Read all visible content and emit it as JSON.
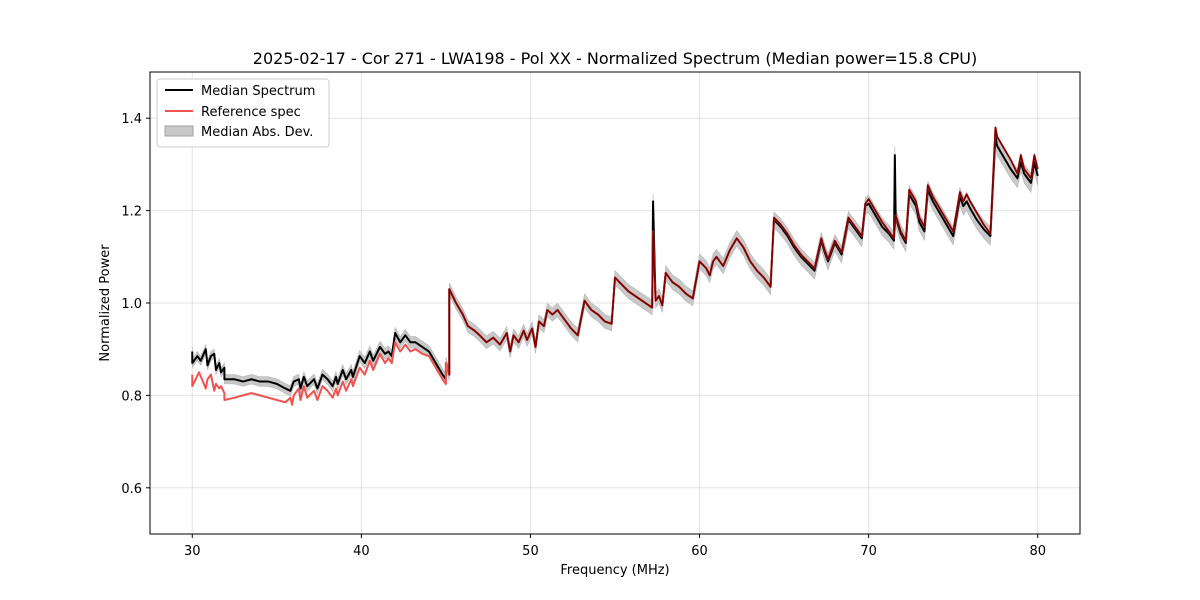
{
  "chart_data": {
    "type": "line",
    "title": "2025-02-17 - Cor 271 - LWA198 - Pol XX - Normalized Spectrum (Median power=15.8 CPU)",
    "xlabel": "Frequency (MHz)",
    "ylabel": "Normalized Power",
    "xlim": [
      27.5,
      82.5
    ],
    "ylim": [
      0.5,
      1.5
    ],
    "xticks": [
      30,
      40,
      50,
      60,
      70,
      80
    ],
    "yticks": [
      0.6,
      0.8,
      1.0,
      1.2,
      1.4
    ],
    "xtick_labels": [
      "30",
      "40",
      "50",
      "60",
      "70",
      "80"
    ],
    "ytick_labels": [
      "0.6",
      "0.8",
      "1.0",
      "1.2",
      "1.4"
    ],
    "grid": true,
    "legend_position": "top-left",
    "legend": [
      {
        "label": "Median Spectrum",
        "kind": "line",
        "color": "#000000"
      },
      {
        "label": "Reference spec",
        "kind": "line",
        "color": "#ef5350"
      },
      {
        "label": "Median Abs. Dev.",
        "kind": "band",
        "color": "#c8c8c8"
      }
    ],
    "mad_width": 0.012,
    "series": [
      {
        "name": "Reference spec",
        "color": "#ef5350",
        "x": [
          30.0,
          30.0,
          30.4,
          30.8,
          30.9,
          31.1,
          31.3,
          31.4,
          31.6,
          31.7,
          31.9,
          31.9,
          32.5,
          33.0,
          33.5,
          34.0,
          34.5,
          35.0,
          35.5,
          35.8,
          35.9,
          36.0,
          36.3,
          36.4,
          36.6,
          36.8,
          37.2,
          37.4,
          37.7,
          38.0,
          38.3,
          38.5,
          38.6,
          38.9,
          39.1,
          39.4,
          39.5,
          39.9,
          40.2,
          40.5,
          40.7,
          41.1,
          41.4,
          41.6,
          41.8,
          42.0,
          42.3,
          42.6,
          42.9,
          43.2,
          43.6,
          44.0,
          44.4,
          44.8,
          45.0,
          45.0,
          45.2,
          45.2,
          45.6,
          46.0,
          46.3,
          46.7,
          47.0,
          47.4,
          47.8,
          48.2,
          48.6,
          48.8,
          49.0,
          49.3,
          49.6,
          49.8,
          50.1,
          50.3,
          50.5,
          50.8,
          51.0,
          51.3,
          51.6,
          52.0,
          52.4,
          52.8,
          53.2,
          53.4,
          53.6,
          54.0,
          54.4,
          54.8,
          55.0,
          55.4,
          55.8,
          56.2,
          56.6,
          57.0,
          57.2,
          57.25,
          57.4,
          57.6,
          57.8,
          58.0,
          58.4,
          58.8,
          59.2,
          59.6,
          60.0,
          60.4,
          60.6,
          60.8,
          61.0,
          61.4,
          61.8,
          62.2,
          62.6,
          63.0,
          63.4,
          63.8,
          64.2,
          64.4,
          64.8,
          65.2,
          65.6,
          66.0,
          66.4,
          66.8,
          67.2,
          67.4,
          67.6,
          68.0,
          68.4,
          68.8,
          69.2,
          69.6,
          69.8,
          70.0,
          70.4,
          70.8,
          71.2,
          71.5,
          71.6,
          71.9,
          72.2,
          72.4,
          72.8,
          73.0,
          73.3,
          73.5,
          73.8,
          74.2,
          74.6,
          75.0,
          75.4,
          75.6,
          75.8,
          76.0,
          76.4,
          76.8,
          77.2,
          77.5,
          77.6,
          78.0,
          78.4,
          78.8,
          79.0,
          79.2,
          79.6,
          79.8,
          80.0
        ],
        "values": [
          0.845,
          0.82,
          0.85,
          0.815,
          0.835,
          0.845,
          0.81,
          0.825,
          0.815,
          0.82,
          0.805,
          0.79,
          0.795,
          0.8,
          0.805,
          0.8,
          0.795,
          0.79,
          0.785,
          0.795,
          0.78,
          0.8,
          0.815,
          0.79,
          0.82,
          0.795,
          0.81,
          0.79,
          0.82,
          0.81,
          0.795,
          0.815,
          0.8,
          0.83,
          0.81,
          0.835,
          0.82,
          0.86,
          0.845,
          0.875,
          0.855,
          0.89,
          0.87,
          0.88,
          0.87,
          0.915,
          0.895,
          0.91,
          0.895,
          0.9,
          0.89,
          0.885,
          0.86,
          0.835,
          0.825,
          0.87,
          0.845,
          1.03,
          1.0,
          0.975,
          0.95,
          0.94,
          0.93,
          0.915,
          0.925,
          0.91,
          0.935,
          0.895,
          0.93,
          0.915,
          0.94,
          0.92,
          0.945,
          0.905,
          0.96,
          0.95,
          0.985,
          0.975,
          0.985,
          0.965,
          0.945,
          0.93,
          1.005,
          0.995,
          0.985,
          0.975,
          0.96,
          0.955,
          1.055,
          1.04,
          1.025,
          1.015,
          1.005,
          0.995,
          0.99,
          1.155,
          1.005,
          1.015,
          0.995,
          1.065,
          1.045,
          1.035,
          1.02,
          1.01,
          1.09,
          1.075,
          1.06,
          1.09,
          1.1,
          1.08,
          1.115,
          1.14,
          1.12,
          1.09,
          1.07,
          1.055,
          1.035,
          1.185,
          1.17,
          1.15,
          1.125,
          1.105,
          1.09,
          1.075,
          1.14,
          1.115,
          1.095,
          1.135,
          1.11,
          1.185,
          1.165,
          1.145,
          1.215,
          1.225,
          1.2,
          1.175,
          1.155,
          1.14,
          1.19,
          1.155,
          1.135,
          1.245,
          1.22,
          1.185,
          1.165,
          1.255,
          1.23,
          1.205,
          1.18,
          1.155,
          1.24,
          1.22,
          1.235,
          1.22,
          1.195,
          1.17,
          1.15,
          1.38,
          1.36,
          1.335,
          1.31,
          1.28,
          1.32,
          1.29,
          1.27,
          1.32,
          1.29
        ]
      },
      {
        "name": "Median Spectrum",
        "color": "#000000",
        "x": [
          30.0,
          30.0,
          30.3,
          30.5,
          30.8,
          30.9,
          31.1,
          31.3,
          31.4,
          31.6,
          31.7,
          31.9,
          31.9,
          32.5,
          33.0,
          33.5,
          34.0,
          34.5,
          35.0,
          35.5,
          35.8,
          35.9,
          36.0,
          36.3,
          36.4,
          36.6,
          36.8,
          37.2,
          37.4,
          37.7,
          38.0,
          38.3,
          38.5,
          38.6,
          38.9,
          39.1,
          39.4,
          39.5,
          39.9,
          40.2,
          40.5,
          40.7,
          41.1,
          41.4,
          41.6,
          41.8,
          42.0,
          42.3,
          42.6,
          42.9,
          43.2,
          43.6,
          44.0,
          44.4,
          44.8,
          45.0,
          45.0,
          45.2,
          45.2,
          45.6,
          46.0,
          46.3,
          46.7,
          47.0,
          47.4,
          47.8,
          48.2,
          48.6,
          48.8,
          49.0,
          49.3,
          49.6,
          49.8,
          50.1,
          50.3,
          50.5,
          50.8,
          51.0,
          51.3,
          51.6,
          52.0,
          52.4,
          52.8,
          53.2,
          53.4,
          53.6,
          54.0,
          54.4,
          54.8,
          55.0,
          55.4,
          55.8,
          56.2,
          56.6,
          57.0,
          57.2,
          57.25,
          57.4,
          57.6,
          57.8,
          58.0,
          58.4,
          58.8,
          59.2,
          59.6,
          60.0,
          60.4,
          60.6,
          60.8,
          61.0,
          61.4,
          61.8,
          62.2,
          62.6,
          63.0,
          63.4,
          63.8,
          64.2,
          64.4,
          64.8,
          65.2,
          65.6,
          66.0,
          66.4,
          66.8,
          67.2,
          67.4,
          67.6,
          68.0,
          68.4,
          68.8,
          69.2,
          69.6,
          69.8,
          70.0,
          70.4,
          70.8,
          71.2,
          71.5,
          71.55,
          71.6,
          71.9,
          72.2,
          72.4,
          72.8,
          73.0,
          73.3,
          73.5,
          73.8,
          74.2,
          74.6,
          75.0,
          75.4,
          75.6,
          75.8,
          76.0,
          76.4,
          76.8,
          77.2,
          77.5,
          77.6,
          78.0,
          78.4,
          78.8,
          79.0,
          79.2,
          79.6,
          79.8,
          80.0
        ],
        "values": [
          0.895,
          0.87,
          0.885,
          0.875,
          0.9,
          0.865,
          0.885,
          0.89,
          0.855,
          0.87,
          0.85,
          0.86,
          0.835,
          0.835,
          0.83,
          0.835,
          0.83,
          0.83,
          0.825,
          0.815,
          0.81,
          0.82,
          0.83,
          0.835,
          0.815,
          0.84,
          0.82,
          0.835,
          0.815,
          0.845,
          0.835,
          0.82,
          0.84,
          0.825,
          0.855,
          0.835,
          0.855,
          0.84,
          0.885,
          0.87,
          0.895,
          0.875,
          0.905,
          0.89,
          0.895,
          0.885,
          0.935,
          0.915,
          0.93,
          0.915,
          0.915,
          0.905,
          0.895,
          0.87,
          0.845,
          0.835,
          0.87,
          0.845,
          1.03,
          1.0,
          0.975,
          0.95,
          0.94,
          0.93,
          0.915,
          0.925,
          0.91,
          0.935,
          0.895,
          0.93,
          0.915,
          0.94,
          0.92,
          0.945,
          0.905,
          0.96,
          0.95,
          0.985,
          0.975,
          0.985,
          0.965,
          0.945,
          0.93,
          1.005,
          0.995,
          0.985,
          0.975,
          0.96,
          0.955,
          1.055,
          1.04,
          1.025,
          1.015,
          1.005,
          0.995,
          0.99,
          1.22,
          1.005,
          1.015,
          0.995,
          1.065,
          1.045,
          1.035,
          1.02,
          1.01,
          1.09,
          1.075,
          1.06,
          1.09,
          1.1,
          1.08,
          1.115,
          1.14,
          1.12,
          1.09,
          1.07,
          1.055,
          1.035,
          1.18,
          1.165,
          1.145,
          1.12,
          1.1,
          1.085,
          1.07,
          1.135,
          1.11,
          1.09,
          1.13,
          1.105,
          1.18,
          1.16,
          1.14,
          1.21,
          1.215,
          1.19,
          1.165,
          1.15,
          1.135,
          1.32,
          1.185,
          1.15,
          1.13,
          1.235,
          1.21,
          1.175,
          1.155,
          1.245,
          1.22,
          1.195,
          1.17,
          1.145,
          1.23,
          1.21,
          1.22,
          1.205,
          1.18,
          1.16,
          1.145,
          1.36,
          1.34,
          1.315,
          1.29,
          1.27,
          1.305,
          1.28,
          1.26,
          1.305,
          1.275
        ]
      }
    ]
  }
}
